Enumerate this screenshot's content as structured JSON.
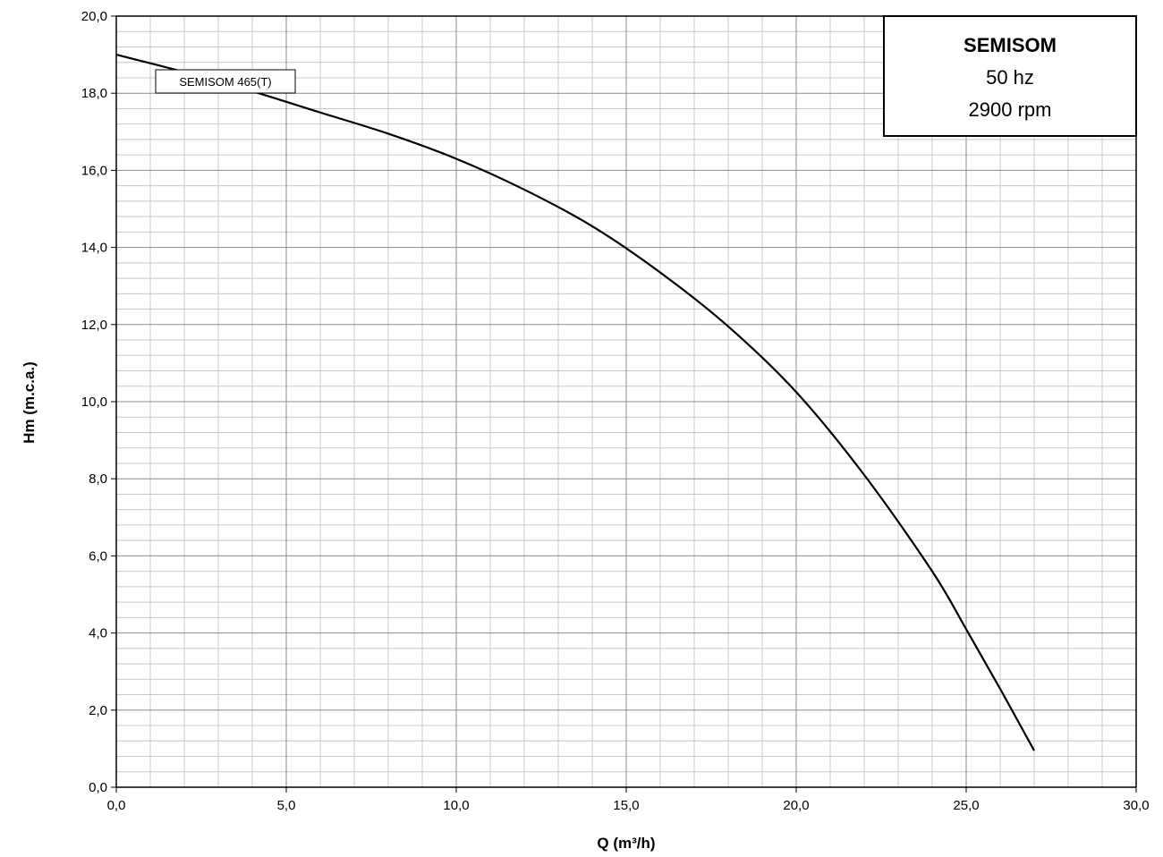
{
  "chart_data": {
    "type": "line",
    "title": "",
    "xlabel": "Q (m³/h)",
    "ylabel": "Hm (m.c.a.)",
    "xlim": [
      0,
      30
    ],
    "ylim": [
      0,
      20
    ],
    "x_major_step": 5,
    "x_minor_step": 1,
    "y_major_step": 2,
    "y_minor_step": 0.4,
    "x_tick_labels": [
      "0,0",
      "5,0",
      "10,0",
      "15,0",
      "20,0",
      "25,0",
      "30,0"
    ],
    "y_tick_labels": [
      "0,0",
      "2,0",
      "4,0",
      "6,0",
      "8,0",
      "10,0",
      "12,0",
      "14,0",
      "16,0",
      "18,0",
      "20,0"
    ],
    "grid": true,
    "series": [
      {
        "name": "SEMISOM 465(T)",
        "color": "#000000",
        "x": [
          0,
          2,
          4,
          6,
          8,
          10,
          12,
          14,
          16,
          18,
          20,
          22,
          24,
          25,
          26,
          27
        ],
        "y": [
          19.0,
          18.55,
          18.05,
          17.5,
          16.95,
          16.3,
          15.5,
          14.55,
          13.35,
          11.95,
          10.25,
          8.1,
          5.6,
          4.1,
          2.55,
          0.95
        ]
      }
    ],
    "info_box": {
      "title": "SEMISOM",
      "lines": [
        "50 hz",
        "2900 rpm"
      ]
    },
    "colors": {
      "grid_major": "#8c8c8c",
      "grid_minor": "#c8c8c8",
      "axis": "#000000",
      "curve": "#000000"
    }
  }
}
